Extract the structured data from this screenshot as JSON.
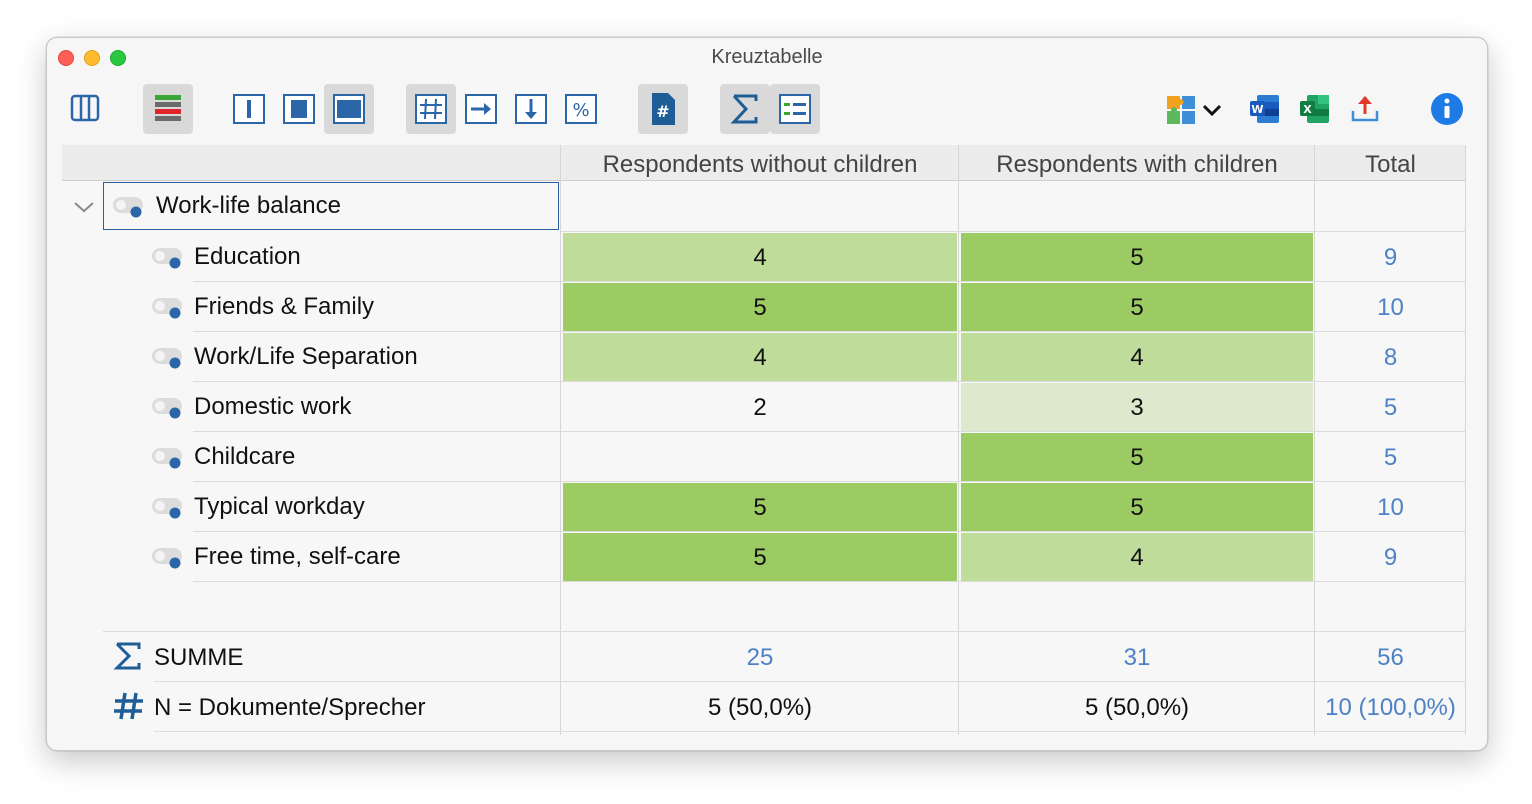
{
  "window": {
    "title": "Kreuztabelle"
  },
  "toolbar": {
    "left_buttons": [
      "columns-panel-icon",
      "heatmap-icon",
      "column-narrow-icon",
      "column-medium-icon",
      "column-wide-icon",
      "hash-grid-icon",
      "arrow-right-icon",
      "arrow-down-icon",
      "percent-icon",
      "doc-hash-icon",
      "sigma-icon",
      "legend-icon"
    ],
    "right_buttons": [
      "puzzle-icon",
      "chevron-down-icon",
      "word-icon",
      "excel-icon",
      "export-icon",
      "info-icon"
    ],
    "hash_doc_label": "#",
    "percent_label": "%",
    "word_label": "W",
    "excel_label": "X"
  },
  "columns": [
    "Respondents without children",
    "Respondents with children",
    "Total"
  ],
  "parent_code": {
    "label": "Work-life balance"
  },
  "rows": [
    {
      "label": "Education",
      "values": [
        "4",
        "5"
      ],
      "total": "9"
    },
    {
      "label": "Friends & Family",
      "values": [
        "5",
        "5"
      ],
      "total": "10"
    },
    {
      "label": "Work/Life Separation",
      "values": [
        "4",
        "4"
      ],
      "total": "8"
    },
    {
      "label": "Domestic work",
      "values": [
        "2",
        "3"
      ],
      "total": "5"
    },
    {
      "label": "Childcare",
      "values": [
        "",
        "5"
      ],
      "total": "5"
    },
    {
      "label": "Typical workday",
      "values": [
        "5",
        "5"
      ],
      "total": "10"
    },
    {
      "label": "Free time, self-care",
      "values": [
        "5",
        "4"
      ],
      "total": "9"
    }
  ],
  "summary": {
    "sum_label": "SUMME",
    "sum_values": [
      "25",
      "31",
      "56"
    ],
    "n_label": "N = Dokumente/Sprecher",
    "n_values": [
      "5 (50,0%)",
      "5 (50,0%)",
      "10 (100,0%)"
    ]
  },
  "colors": {
    "heat_high": "#9dcb63",
    "heat_mid": "#bfdc9b",
    "heat_low": "#dde9cc",
    "total_text": "#4f82c4",
    "code_dot": "#2b67a8"
  }
}
